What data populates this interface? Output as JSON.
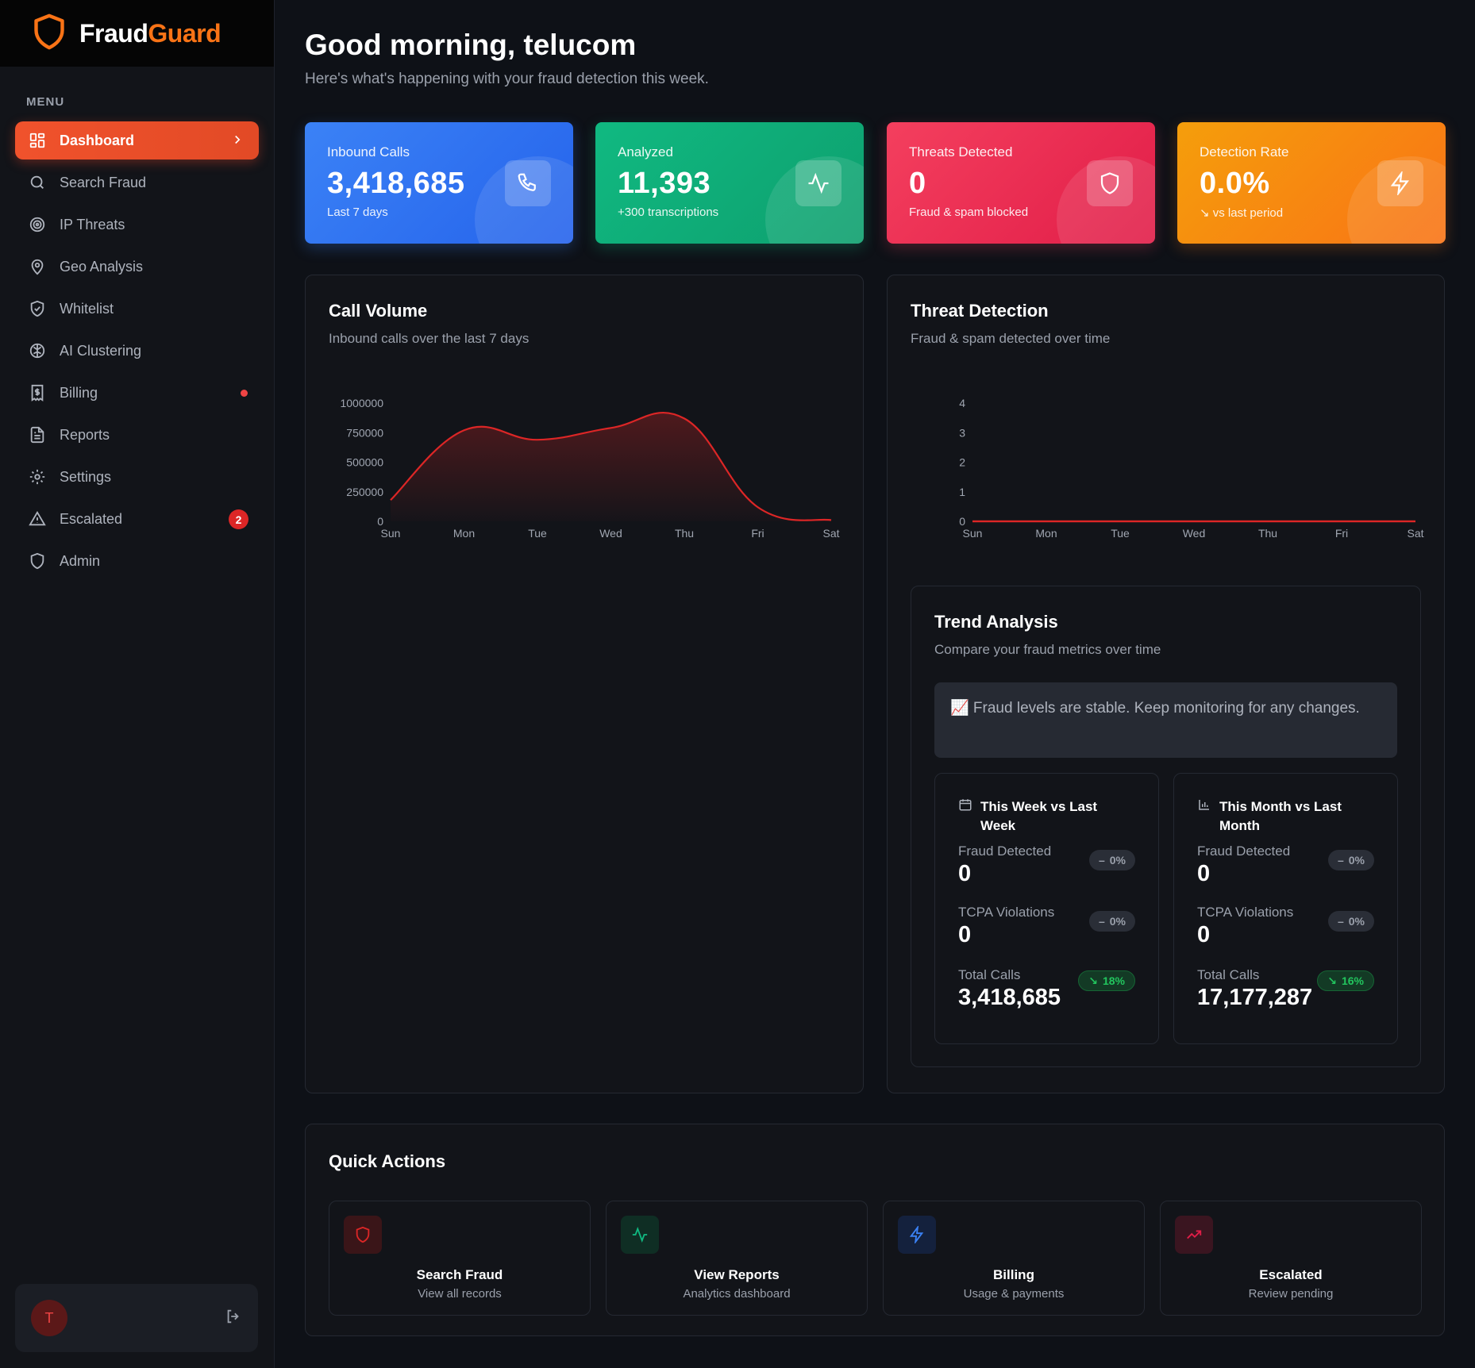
{
  "brand": {
    "name_part1": "Fraud",
    "name_part2": "Guard"
  },
  "sidebar": {
    "menu_title": "MENU",
    "items": [
      {
        "label": "Dashboard",
        "icon": "dashboard-grid-icon",
        "active": true
      },
      {
        "label": "Search Fraud",
        "icon": "search-icon"
      },
      {
        "label": "IP Threats",
        "icon": "target-icon"
      },
      {
        "label": "Geo Analysis",
        "icon": "map-pin-icon"
      },
      {
        "label": "Whitelist",
        "icon": "shield-check-icon"
      },
      {
        "label": "AI Clustering",
        "icon": "brain-icon"
      },
      {
        "label": "Billing",
        "icon": "receipt-dollar-icon",
        "dot": true
      },
      {
        "label": "Reports",
        "icon": "file-text-icon"
      },
      {
        "label": "Settings",
        "icon": "gear-icon"
      },
      {
        "label": "Escalated",
        "icon": "alert-triangle-icon",
        "badge": "2"
      },
      {
        "label": "Admin",
        "icon": "shield-icon"
      }
    ],
    "user_initial": "T"
  },
  "header": {
    "greeting": "Good morning, telucom",
    "subtitle": "Here's what's happening with your fraud detection this week."
  },
  "stats": [
    {
      "label": "Inbound Calls",
      "value": "3,418,685",
      "sub": "Last 7 days",
      "icon": "phone-icon",
      "color": "#3b82f6"
    },
    {
      "label": "Analyzed",
      "value": "11,393",
      "sub": "+300 transcriptions",
      "icon": "activity-icon",
      "color": "#10b981"
    },
    {
      "label": "Threats Detected",
      "value": "0",
      "sub": "Fraud & spam blocked",
      "icon": "shield-icon",
      "color": "#f43f5e"
    },
    {
      "label": "Detection Rate",
      "value": "0.0%",
      "sub": "↘ vs last period",
      "icon": "zap-icon",
      "color": "#f97316"
    }
  ],
  "call_volume": {
    "title": "Call Volume",
    "subtitle": "Inbound calls over the last 7 days"
  },
  "threat_detection": {
    "title": "Threat Detection",
    "subtitle": "Fraud & spam detected over time"
  },
  "chart_data": [
    {
      "type": "area",
      "x": [
        "Sun",
        "Mon",
        "Tue",
        "Wed",
        "Thu",
        "Fri",
        "Sat"
      ],
      "series": [
        {
          "values": [
            180000,
            770000,
            690000,
            790000,
            870000,
            120000,
            10000
          ]
        }
      ],
      "yticks": [
        0,
        250000,
        500000,
        750000,
        1000000
      ],
      "ylim": [
        0,
        1000000
      ],
      "color": "#dc2626"
    },
    {
      "type": "line",
      "x": [
        "Sun",
        "Mon",
        "Tue",
        "Wed",
        "Thu",
        "Fri",
        "Sat"
      ],
      "series": [
        {
          "values": [
            0,
            0,
            0,
            0,
            0,
            0,
            0
          ]
        }
      ],
      "yticks": [
        0,
        1,
        2,
        3,
        4
      ],
      "ylim": [
        0,
        4
      ],
      "color": "#dc2626"
    }
  ],
  "trend": {
    "title": "Trend Analysis",
    "subtitle": "Compare your fraud metrics over time",
    "note": "📈 Fraud levels are stable. Keep monitoring for any changes.",
    "week": {
      "title": "This Week vs Last Week",
      "metrics": [
        {
          "label": "Fraud Detected",
          "value": "0",
          "change": "0%",
          "dir": "flat"
        },
        {
          "label": "TCPA Violations",
          "value": "0",
          "change": "0%",
          "dir": "flat"
        },
        {
          "label": "Total Calls",
          "value": "3,418,685",
          "change": "18%",
          "dir": "down"
        }
      ]
    },
    "month": {
      "title": "This Month vs Last Month",
      "metrics": [
        {
          "label": "Fraud Detected",
          "value": "0",
          "change": "0%",
          "dir": "flat"
        },
        {
          "label": "TCPA Violations",
          "value": "0",
          "change": "0%",
          "dir": "flat"
        },
        {
          "label": "Total Calls",
          "value": "17,177,287",
          "change": "16%",
          "dir": "down"
        }
      ]
    }
  },
  "quick_actions": {
    "title": "Quick Actions",
    "items": [
      {
        "title": "Search Fraud",
        "sub": "View all records",
        "icon": "shield-icon",
        "color": "#dc2626"
      },
      {
        "title": "View Reports",
        "sub": "Analytics dashboard",
        "icon": "activity-icon",
        "color": "#10b981"
      },
      {
        "title": "Billing",
        "sub": "Usage & payments",
        "icon": "zap-icon",
        "color": "#3b82f6"
      },
      {
        "title": "Escalated",
        "sub": "Review pending",
        "icon": "trending-up-icon",
        "color": "#e11d48"
      }
    ]
  }
}
